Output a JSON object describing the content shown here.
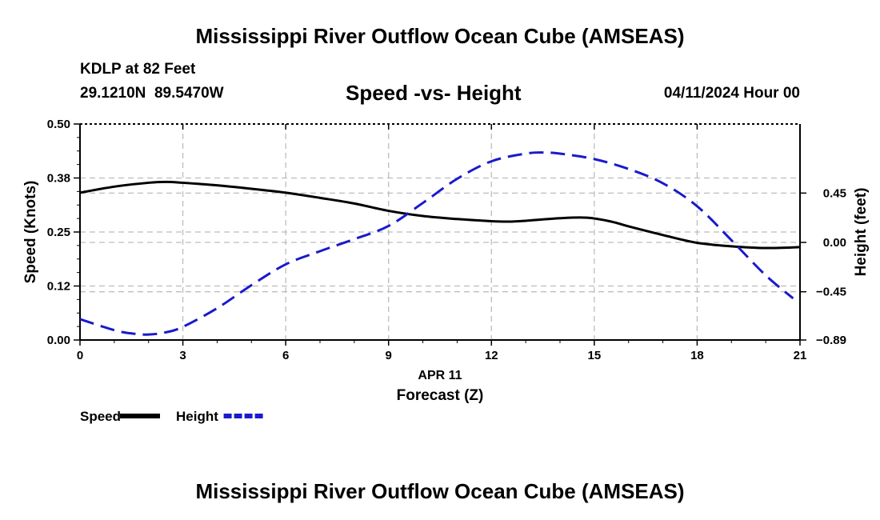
{
  "page": {
    "title": "Mississippi River Outflow Ocean Cube (AMSEAS)",
    "footer_title": "Mississippi River Outflow Ocean Cube (AMSEAS)",
    "station": "KDLP at 82 Feet",
    "coords": "29.1210N  89.5470W",
    "subtitle": "Speed -vs- Height",
    "datetime": "04/11/2024 Hour 00"
  },
  "chart_data": {
    "type": "line",
    "title": "Speed -vs- Height",
    "xlabel": "Forecast (Z)",
    "xdate_label": "APR 11",
    "xlim": [
      0,
      21
    ],
    "x_ticks": [
      0,
      3,
      6,
      9,
      12,
      15,
      18,
      21
    ],
    "x_tick_labels": [
      "0",
      "3",
      "6",
      "9",
      "12",
      "15",
      "18",
      "21"
    ],
    "ylabel_left": "Speed (Knots)",
    "ylim_left": [
      0,
      0.5
    ],
    "y_ticks_left": [
      0,
      0.125,
      0.25,
      0.375,
      0.5
    ],
    "y_tick_labels_left": [
      "0.00",
      "0.12",
      "0.25",
      "0.38",
      "0.50"
    ],
    "ylabel_right": "Height (feet)",
    "ylim_right": [
      -0.89,
      1.08
    ],
    "y_ticks_right": [
      -0.89,
      -0.45,
      0.0,
      0.45
    ],
    "y_tick_labels_right": [
      "−0.89",
      "−0.45",
      "0.00",
      "0.45"
    ],
    "grid": true,
    "legend_position": "bottom-left",
    "series": [
      {
        "name": "Speed",
        "axis": "left",
        "color": "#000000",
        "style": "solid",
        "x": [
          0,
          1,
          2,
          2.5,
          3,
          4,
          5,
          6,
          7,
          8,
          9,
          10,
          11,
          12,
          12.5,
          13,
          14,
          14.8,
          15.5,
          16,
          17,
          18,
          19,
          20,
          21
        ],
        "values": [
          0.341,
          0.355,
          0.364,
          0.366,
          0.364,
          0.358,
          0.35,
          0.341,
          0.329,
          0.316,
          0.299,
          0.287,
          0.28,
          0.275,
          0.274,
          0.276,
          0.282,
          0.283,
          0.274,
          0.263,
          0.243,
          0.225,
          0.217,
          0.213,
          0.215
        ]
      },
      {
        "name": "Height",
        "axis": "right",
        "color": "#1a1acc",
        "style": "dashed",
        "x": [
          0,
          1,
          1.5,
          2,
          2.5,
          3,
          4,
          5,
          6,
          7,
          8,
          9,
          10,
          11,
          12,
          13,
          13.5,
          14,
          15,
          16,
          17,
          18,
          19,
          20,
          20.8
        ],
        "values": [
          -0.7,
          -0.8,
          -0.83,
          -0.84,
          -0.82,
          -0.77,
          -0.6,
          -0.39,
          -0.2,
          -0.08,
          0.03,
          0.15,
          0.36,
          0.58,
          0.74,
          0.81,
          0.82,
          0.81,
          0.76,
          0.67,
          0.54,
          0.33,
          0.02,
          -0.3,
          -0.51
        ]
      }
    ]
  }
}
